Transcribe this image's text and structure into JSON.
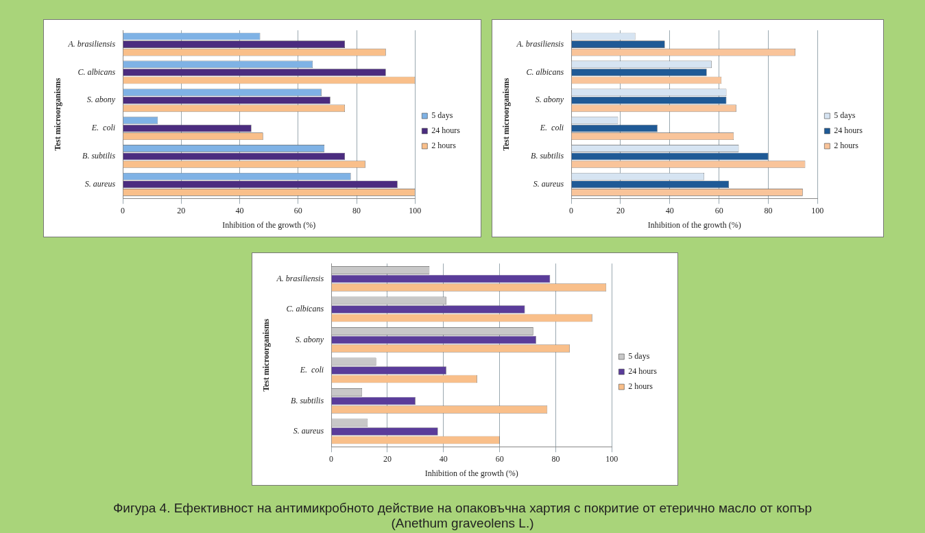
{
  "chart_data": [
    {
      "type": "bar",
      "orientation": "horizontal",
      "categories": [
        "A. brasiliensis",
        "C. albicans",
        "S. abony",
        "E.  coli",
        "B. subtilis",
        "S. aureus"
      ],
      "series": [
        {
          "name": "5 days",
          "color": "#7fb2e5",
          "values": [
            47,
            65,
            68,
            12,
            69,
            78
          ]
        },
        {
          "name": "24 hours",
          "color": "#4b2c7f",
          "values": [
            76,
            90,
            71,
            44,
            76,
            94
          ]
        },
        {
          "name": "2 hours",
          "color": "#f9bf8a",
          "values": [
            90,
            100,
            76,
            48,
            83,
            100
          ]
        }
      ],
      "xlim": [
        0,
        100
      ],
      "xticks": [
        0,
        20,
        40,
        60,
        80,
        100
      ],
      "xlabel": "Inhibition of the growth (%)",
      "ylabel": "Test microorganisms",
      "grid": "x",
      "legend": "right"
    },
    {
      "type": "bar",
      "orientation": "horizontal",
      "categories": [
        "A. brasiliensis",
        "C. albicans",
        "S. abony",
        "E.  coli",
        "B. subtilis",
        "S. aureus"
      ],
      "series": [
        {
          "name": "5 days",
          "color": "#d6e4f2",
          "values": [
            26,
            57,
            63,
            19,
            68,
            54
          ]
        },
        {
          "name": "24 hours",
          "color": "#1f5a96",
          "values": [
            38,
            55,
            63,
            35,
            80,
            64
          ]
        },
        {
          "name": "2 hours",
          "color": "#f9c49a",
          "values": [
            91,
            61,
            67,
            66,
            95,
            94
          ]
        }
      ],
      "xlim": [
        0,
        100
      ],
      "xticks": [
        0,
        20,
        40,
        60,
        80,
        100
      ],
      "xlabel": "Inhibition of the growth (%)",
      "ylabel": "Test microorganisms",
      "grid": "x",
      "legend": "right"
    },
    {
      "type": "bar",
      "orientation": "horizontal",
      "categories": [
        "A. brasiliensis",
        "C. albicans",
        "S. abony",
        "E.  coli",
        "B. subtilis",
        "S. aureus"
      ],
      "series": [
        {
          "name": "5 days",
          "color": "#c8c8c8",
          "values": [
            35,
            41,
            72,
            16,
            11,
            13
          ]
        },
        {
          "name": "24 hours",
          "color": "#5a3c9a",
          "values": [
            78,
            69,
            73,
            41,
            30,
            38
          ]
        },
        {
          "name": "2 hours",
          "color": "#f9bf8a",
          "values": [
            98,
            93,
            85,
            52,
            77,
            60
          ]
        }
      ],
      "xlim": [
        0,
        100
      ],
      "xticks": [
        0,
        20,
        40,
        60,
        80,
        100
      ],
      "xlabel": "Inhibition of the growth (%)",
      "ylabel": "Test microorganisms",
      "grid": "x",
      "legend": "right",
      "annotations": [
        "Фигура 4. Ефективност на антимикробното действие на опаковъчна хартия с покритие от етерично масло от копър (Anethum graveolens L.)"
      ]
    }
  ]
}
